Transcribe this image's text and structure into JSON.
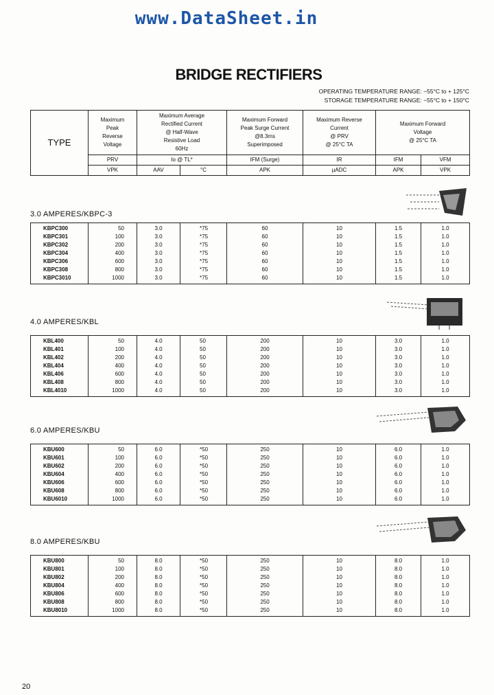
{
  "watermark": "www.DataSheet.in",
  "title": "BRIDGE RECTIFIERS",
  "operating_temp": "OPERATING TEMPERATURE RANGE: −55°C to + 125°C",
  "storage_temp": "STORAGE TEMPERATURE RANGE: −55°C to + 150°C",
  "header": {
    "type": "TYPE",
    "prv": "Maximum\nPeak\nReverse\nVoltage",
    "io": "Maximum Average\nRectified Current\n@ Half-Wave\nResistive Load\n60Hz",
    "ifsm": "Maximum Forward\nPeak Surge Current\n@8.3ms\nSuperimposed",
    "ir": "Maximum Reverse\nCurrent\n@ PRV\n@ 25°C TA",
    "vf": "Maximum Forward\nVoltage\n@ 25°C TA",
    "sym": [
      "PRV",
      "Io @ TL*",
      "IFM (Surge)",
      "IR",
      "IFM",
      "VFM"
    ],
    "units": [
      "VPK",
      "AAV",
      "°C",
      "APK",
      "µADC",
      "APK",
      "VPK"
    ]
  },
  "sections": [
    {
      "heading": "3.0 AMPERES/KBPC-3",
      "types": [
        "KBPC300",
        "KBPC301",
        "KBPC302",
        "KBPC304",
        "KBPC306",
        "KBPC308",
        "KBPC3010"
      ],
      "prv": [
        "50",
        "100",
        "200",
        "400",
        "600",
        "800",
        "1000"
      ],
      "io": "3.0",
      "tl": "*75",
      "ifsm": "60",
      "ir": "10",
      "ifm": "1.5",
      "vfm": "1.0"
    },
    {
      "heading": "4.0 AMPERES/KBL",
      "types": [
        "KBL400",
        "KBL401",
        "KBL402",
        "KBL404",
        "KBL406",
        "KBL408",
        "KBL4010"
      ],
      "prv": [
        "50",
        "100",
        "200",
        "400",
        "600",
        "800",
        "1000"
      ],
      "io": "4.0",
      "tl": "50",
      "ifsm": "200",
      "ir": "10",
      "ifm": "3.0",
      "vfm": "1.0"
    },
    {
      "heading": "6.0 AMPERES/KBU",
      "types": [
        "KBU600",
        "KBU601",
        "KBU602",
        "KBU604",
        "KBU606",
        "KBU608",
        "KBU6010"
      ],
      "prv": [
        "50",
        "100",
        "200",
        "400",
        "600",
        "800",
        "1000"
      ],
      "io": "6.0",
      "tl": "*50",
      "ifsm": "250",
      "ir": "10",
      "ifm": "6.0",
      "vfm": "1.0"
    },
    {
      "heading": "8.0 AMPERES/KBU",
      "types": [
        "KBU800",
        "KBU801",
        "KBU802",
        "KBU804",
        "KBU806",
        "KBU808",
        "KBU8010"
      ],
      "prv": [
        "50",
        "100",
        "200",
        "400",
        "600",
        "800",
        "1000"
      ],
      "io": "8.0",
      "tl": "*50",
      "ifsm": "250",
      "ir": "10",
      "ifm": "8.0",
      "vfm": "1.0"
    }
  ],
  "page_number": "20"
}
